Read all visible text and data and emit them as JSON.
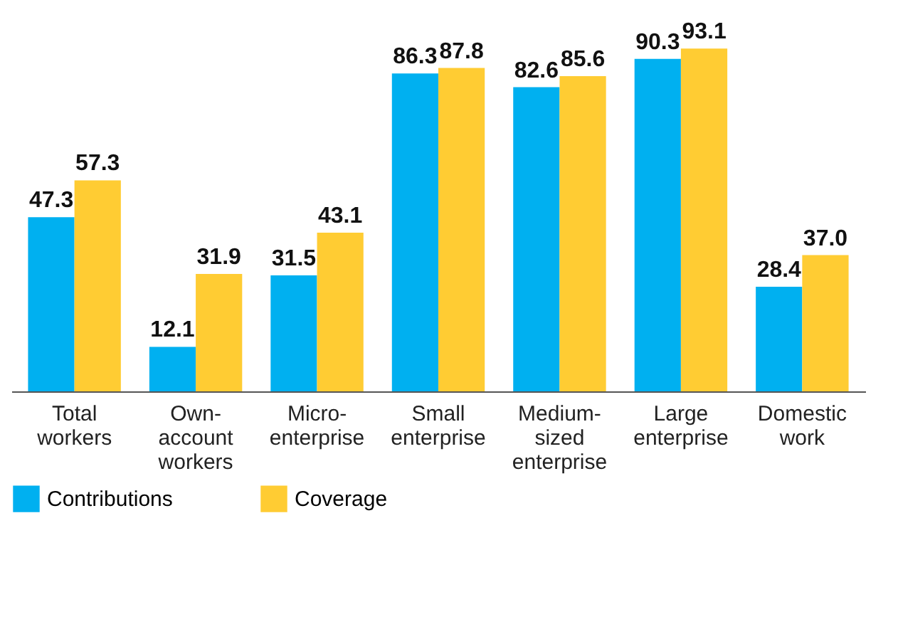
{
  "chart_data": {
    "type": "bar",
    "categories": [
      "Total workers",
      "Own-account workers",
      "Micro-enterprise",
      "Small enterprise",
      "Medium-sized enterprise",
      "Large enterprise",
      "Domestic work"
    ],
    "series": [
      {
        "name": "Contributions",
        "color": "#00b0f0",
        "values": [
          47.3,
          12.1,
          31.5,
          86.3,
          82.6,
          90.3,
          28.4
        ],
        "value_labels": [
          "47.3",
          "12.1",
          "31.5",
          "86.3",
          "82.6",
          "90.3",
          "28.4"
        ]
      },
      {
        "name": "Coverage",
        "color": "#ffcc33",
        "values": [
          57.3,
          31.9,
          43.1,
          87.8,
          85.6,
          93.1,
          37.0
        ],
        "value_labels": [
          "57.3",
          "31.9",
          "43.1",
          "87.8",
          "85.6",
          "93.1",
          "37.0"
        ]
      }
    ],
    "legend": "bottom left",
    "grid": false
  }
}
